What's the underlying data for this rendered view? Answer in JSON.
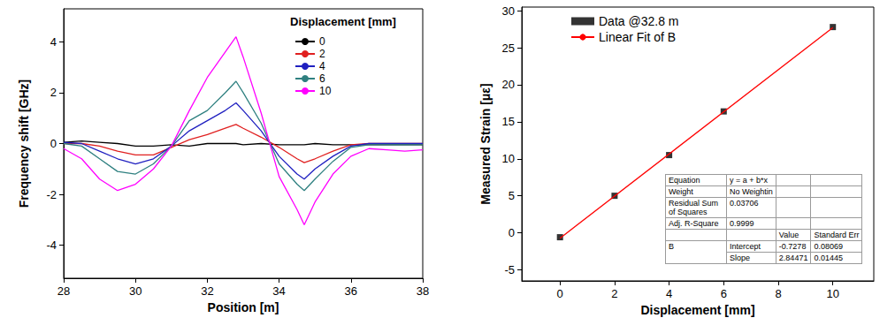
{
  "chart_data": [
    {
      "type": "line",
      "xlabel": "Position [m]",
      "ylabel": "Frequency shift [GHz]",
      "legend_title": "Displacement [mm]",
      "legend": "upper right",
      "grid": false,
      "xlim": [
        28,
        38
      ],
      "xticks": [
        28,
        30,
        32,
        34,
        36,
        38
      ],
      "ylim": [
        -5.3,
        5.3
      ],
      "yticks": [
        -4,
        -2,
        0,
        2,
        4
      ],
      "x": [
        28,
        28.5,
        29,
        29.5,
        30,
        30.5,
        31,
        31.5,
        32,
        32.5,
        32.8,
        33,
        33.5,
        34,
        34.5,
        34.7,
        35,
        35.5,
        36,
        36.5,
        37,
        37.5,
        38
      ],
      "series": [
        {
          "name": "0",
          "color": "#000000",
          "values": [
            0.05,
            0.1,
            0.05,
            0,
            -0.1,
            -0.1,
            -0.05,
            -0.1,
            0,
            0,
            0,
            -0.05,
            0,
            -0.05,
            -0.05,
            -0.05,
            0,
            -0.05,
            -0.05,
            -0.05,
            -0.05,
            -0.05,
            -0.05
          ]
        },
        {
          "name": "2",
          "color": "#e02020",
          "values": [
            0,
            0,
            -0.1,
            -0.3,
            -0.45,
            -0.45,
            -0.15,
            0.15,
            0.35,
            0.6,
            0.75,
            0.6,
            0.25,
            -0.15,
            -0.6,
            -0.75,
            -0.6,
            -0.3,
            -0.05,
            0,
            0,
            0,
            0
          ]
        },
        {
          "name": "4",
          "color": "#2020c0",
          "values": [
            0.05,
            0,
            -0.3,
            -0.6,
            -0.8,
            -0.6,
            -0.1,
            0.5,
            0.9,
            1.3,
            1.6,
            1.3,
            0.5,
            -0.5,
            -1.2,
            -1.4,
            -1.0,
            -0.5,
            -0.1,
            0,
            0,
            0,
            0
          ]
        },
        {
          "name": "6",
          "color": "#2f8080",
          "values": [
            0,
            -0.1,
            -0.6,
            -1.1,
            -1.2,
            -0.8,
            -0.1,
            0.9,
            1.3,
            2.0,
            2.45,
            2.0,
            0.8,
            -0.8,
            -1.6,
            -1.85,
            -1.4,
            -0.7,
            -0.15,
            -0.05,
            -0.05,
            -0.05,
            -0.05
          ]
        },
        {
          "name": "10",
          "color": "#ff00ff",
          "values": [
            -0.2,
            -0.6,
            -1.4,
            -1.85,
            -1.6,
            -1.0,
            -0.1,
            1.3,
            2.6,
            3.6,
            4.2,
            3.4,
            1.2,
            -1.3,
            -2.6,
            -3.2,
            -2.3,
            -1.2,
            -0.5,
            -0.2,
            -0.25,
            -0.3,
            -0.25
          ]
        }
      ]
    },
    {
      "type": "scatter",
      "xlabel": "Displacement [mm]",
      "ylabel": "Measured Strain [με]",
      "legend": "upper left",
      "grid": false,
      "xlim": [
        -1.4,
        11.5
      ],
      "xticks": [
        0,
        2,
        4,
        6,
        8,
        10
      ],
      "ylim": [
        -6.5,
        30.5
      ],
      "yticks": [
        -5,
        0,
        5,
        10,
        15,
        20,
        25,
        30
      ],
      "series": [
        {
          "name": "Data @32.8 m",
          "type": "scatter",
          "marker": "square",
          "color": "#000000",
          "x": [
            0,
            2,
            4,
            6,
            10
          ],
          "values": [
            -0.6,
            5.0,
            10.5,
            16.4,
            27.8
          ]
        },
        {
          "name": "Linear Fit of B",
          "type": "line",
          "color": "#ff0000",
          "x": [
            0,
            10
          ],
          "values": [
            -0.73,
            27.72
          ]
        }
      ],
      "fit_table": {
        "rows": [
          {
            "label": "Equation",
            "text": "y = a + b*x"
          },
          {
            "label": "Weight",
            "text": "No Weightin"
          },
          {
            "label": "Residual Sum of Squares",
            "value": 0.03706
          },
          {
            "label": "Adj. R-Square",
            "value": 0.9999
          }
        ],
        "columns": [
          "Value",
          "Standard Err"
        ],
        "parameter": "B",
        "params": [
          {
            "name": "Intercept",
            "value": -0.7278,
            "error": 0.08069
          },
          {
            "name": "Slope",
            "value": 2.84471,
            "error": 0.01445
          }
        ]
      }
    }
  ]
}
